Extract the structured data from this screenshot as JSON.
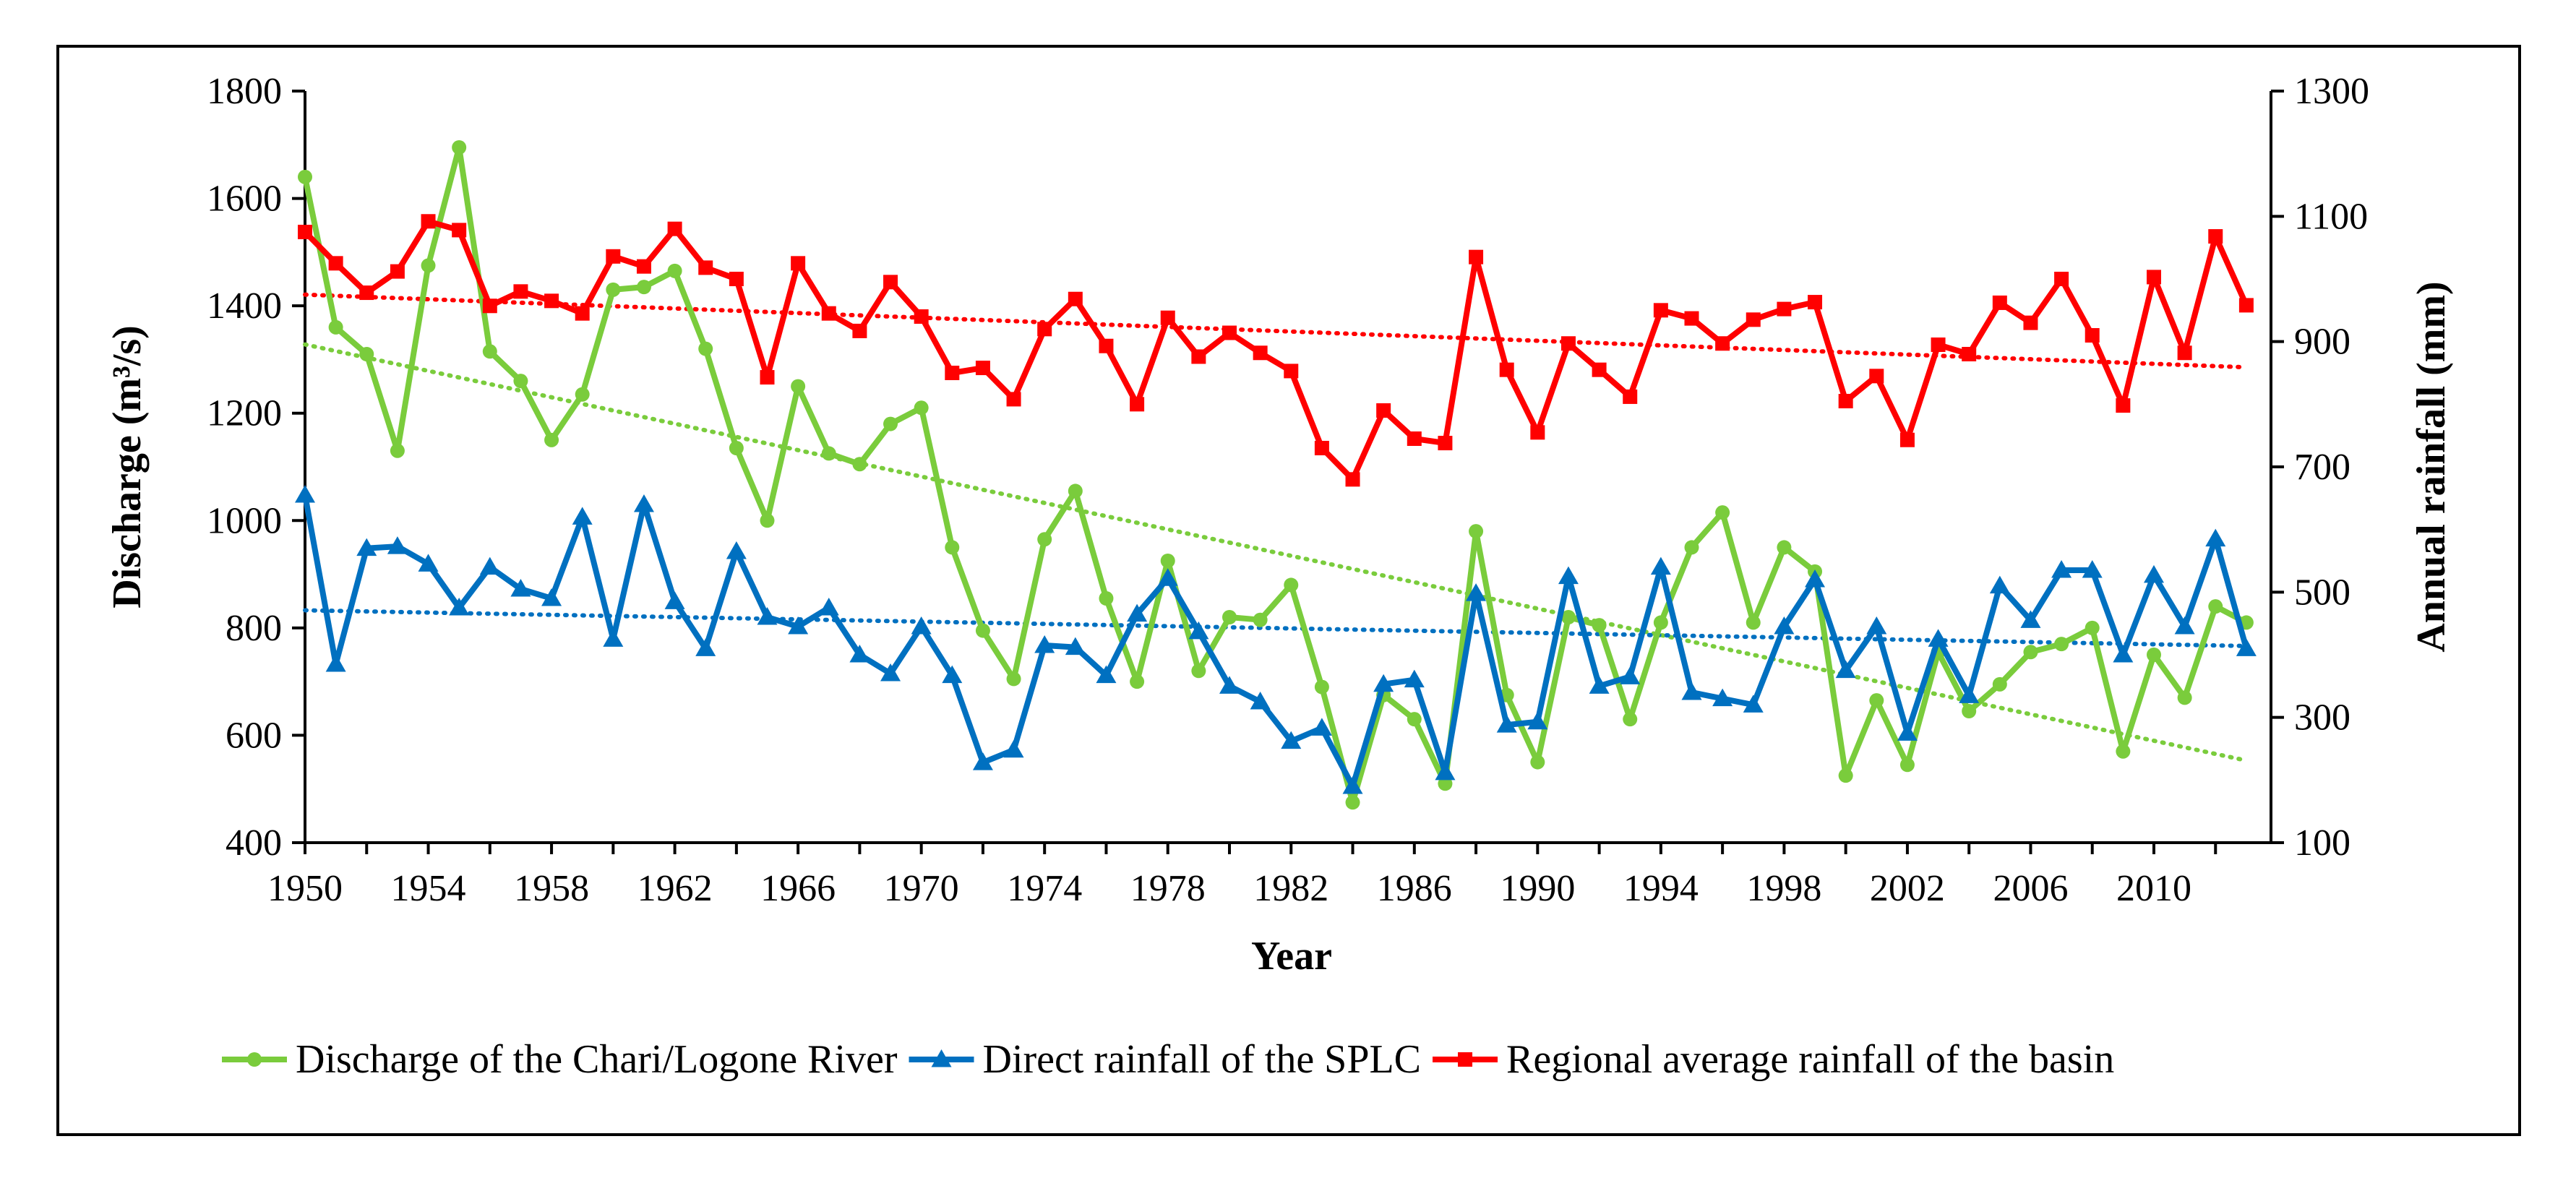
{
  "chart_data": {
    "type": "line",
    "x": [
      1950,
      1951,
      1952,
      1953,
      1954,
      1955,
      1956,
      1957,
      1958,
      1959,
      1960,
      1961,
      1962,
      1963,
      1964,
      1965,
      1966,
      1967,
      1968,
      1969,
      1970,
      1971,
      1972,
      1973,
      1974,
      1975,
      1976,
      1977,
      1978,
      1979,
      1980,
      1981,
      1982,
      1983,
      1984,
      1985,
      1986,
      1987,
      1988,
      1989,
      1990,
      1991,
      1992,
      1993,
      1994,
      1995,
      1996,
      1997,
      1998,
      1999,
      2000,
      2001,
      2002,
      2003,
      2004,
      2005,
      2006,
      2007,
      2008,
      2009,
      2010,
      2011,
      2012,
      2013
    ],
    "xlabel": "Year",
    "x_ticks": [
      "1950",
      "1954",
      "1958",
      "1962",
      "1966",
      "1970",
      "1974",
      "1978",
      "1982",
      "1986",
      "1990",
      "1994",
      "1998",
      "2002",
      "2006",
      "2010"
    ],
    "ylabel": "Discharge (m³/s)",
    "ylim": [
      400,
      1800
    ],
    "y_ticks": [
      "400",
      "600",
      "800",
      "1000",
      "1200",
      "1400",
      "1600",
      "1800"
    ],
    "y2label": "Annual rainfall (mm)",
    "y2lim": [
      100,
      1300
    ],
    "y2_ticks": [
      "100",
      "300",
      "500",
      "700",
      "900",
      "1100",
      "1300"
    ],
    "grid": false,
    "legend_position": "bottom",
    "series": [
      {
        "name": "Discharge of the Chari/Logone River",
        "axis": "left",
        "color": "#7ACC3C",
        "marker": "circle",
        "trendline": true,
        "values": [
          1640,
          1360,
          1310,
          1130,
          1475,
          1695,
          1315,
          1260,
          1150,
          1235,
          1430,
          1435,
          1465,
          1320,
          1135,
          1000,
          1250,
          1125,
          1105,
          1180,
          1210,
          950,
          795,
          705,
          965,
          1055,
          855,
          700,
          925,
          720,
          820,
          815,
          880,
          690,
          475,
          675,
          630,
          510,
          980,
          675,
          550,
          820,
          805,
          630,
          810,
          950,
          1015,
          810,
          950,
          905,
          525,
          665,
          545,
          755,
          645,
          695,
          755,
          770,
          800,
          570,
          750,
          670,
          840,
          810
        ],
        "trend": [
          1328,
          553
        ]
      },
      {
        "name": "Direct rainfall of the SPLC",
        "axis": "right",
        "color": "#0070C0",
        "marker": "triangle",
        "trendline": true,
        "values": [
          655,
          385,
          570,
          573,
          545,
          475,
          540,
          505,
          490,
          620,
          425,
          640,
          485,
          410,
          565,
          460,
          445,
          475,
          400,
          370,
          445,
          367,
          228,
          248,
          415,
          412,
          367,
          465,
          522,
          437,
          350,
          325,
          262,
          283,
          190,
          353,
          360,
          212,
          498,
          288,
          293,
          525,
          350,
          365,
          540,
          340,
          330,
          320,
          445,
          520,
          375,
          445,
          275,
          425,
          335,
          510,
          455,
          535,
          535,
          400,
          527,
          445,
          585,
          410
        ],
        "trend": [
          471,
          414
        ]
      },
      {
        "name": "Regional average rainfall of the basin",
        "axis": "right",
        "color": "#FF0000",
        "marker": "square",
        "trendline": true,
        "values": [
          1075,
          1025,
          978,
          1012,
          1092,
          1078,
          957,
          980,
          965,
          945,
          1036,
          1020,
          1080,
          1018,
          1000,
          843,
          1025,
          945,
          917,
          995,
          940,
          850,
          858,
          808,
          920,
          968,
          893,
          800,
          938,
          876,
          914,
          882,
          853,
          730,
          680,
          790,
          745,
          738,
          1035,
          855,
          755,
          897,
          855,
          812,
          950,
          937,
          897,
          935,
          952,
          963,
          805,
          845,
          743,
          895,
          880,
          962,
          930,
          1000,
          910,
          798,
          1003,
          882,
          1068,
          958
        ],
        "trend": [
          975,
          859
        ]
      }
    ]
  }
}
